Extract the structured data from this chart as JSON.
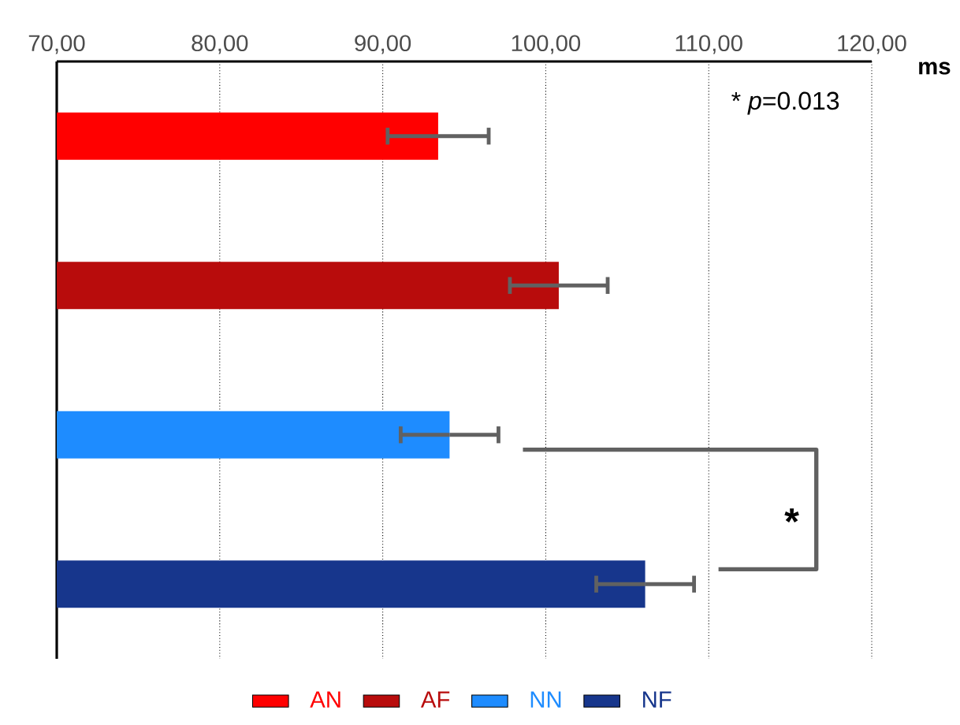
{
  "chart_data": {
    "type": "bar",
    "orientation": "horizontal",
    "xlabel": "ms",
    "categories": [
      null,
      null,
      null,
      null
    ],
    "series": [
      {
        "name": "AN",
        "color": "#ff0000",
        "values": [
          93.4,
          null,
          null,
          null
        ],
        "errors": [
          3.1,
          null,
          null,
          null
        ]
      },
      {
        "name": "AF",
        "color": "#b80c0c",
        "values": [
          null,
          100.8,
          null,
          null
        ],
        "errors": [
          null,
          3.0,
          null,
          null
        ]
      },
      {
        "name": "NN",
        "color": "#1e8cff",
        "values": [
          null,
          null,
          94.1,
          null
        ],
        "errors": [
          null,
          null,
          3.0,
          null
        ]
      },
      {
        "name": "NF",
        "color": "#17368c",
        "values": [
          null,
          null,
          null,
          106.1
        ],
        "errors": [
          null,
          null,
          null,
          3.0
        ]
      }
    ],
    "xlim": [
      70,
      120
    ],
    "xticks": [
      {
        "value": 70,
        "label": "70,00"
      },
      {
        "value": 80,
        "label": "80,00"
      },
      {
        "value": 90,
        "label": "90,00"
      },
      {
        "value": 100,
        "label": "100,00"
      },
      {
        "value": 110,
        "label": "110,00"
      },
      {
        "value": 120,
        "label": "120,00"
      }
    ],
    "grid": "x",
    "legend": "bottom",
    "annotations": [
      "* *p*=0.013",
      "*"
    ]
  }
}
